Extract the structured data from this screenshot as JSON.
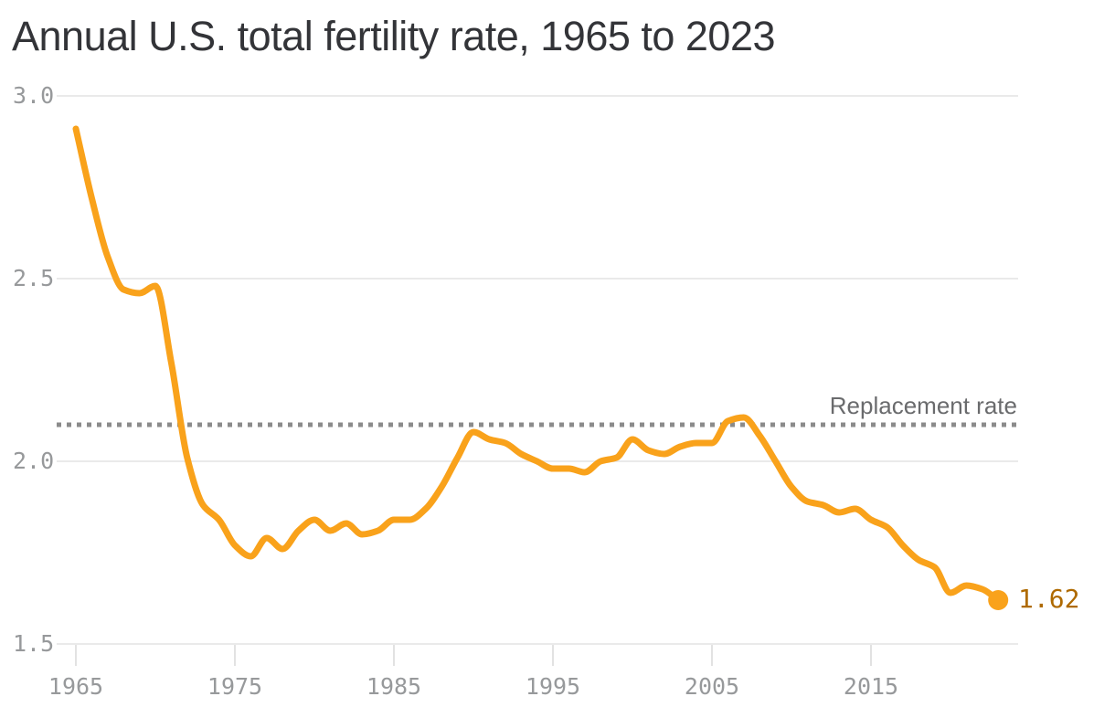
{
  "title": "Annual U.S. total fertility rate, 1965 to 2023",
  "colors": {
    "background": "#FFFFFF",
    "title": "#333438",
    "line": "#F9A21B",
    "end_dot": "#F9A21B",
    "end_value_label": "#AF6A00",
    "axis_label": "#97999B",
    "gridline": "#EAEAEA",
    "axis_tick": "#E2E2E2",
    "reference_line": "#8B8B8B",
    "reference_label": "#6A6B6D"
  },
  "chart_data": {
    "type": "line",
    "title": "Annual U.S. total fertility rate, 1965 to 2023",
    "xlabel": "",
    "ylabel": "",
    "xlim": [
      1965,
      2023
    ],
    "ylim": [
      1.5,
      3.0
    ],
    "grid": "horizontal",
    "legend": "none",
    "x": [
      1965,
      1966,
      1967,
      1968,
      1969,
      1970,
      1971,
      1972,
      1973,
      1974,
      1975,
      1976,
      1977,
      1978,
      1979,
      1980,
      1981,
      1982,
      1983,
      1984,
      1985,
      1986,
      1987,
      1988,
      1989,
      1990,
      1991,
      1992,
      1993,
      1994,
      1995,
      1996,
      1997,
      1998,
      1999,
      2000,
      2001,
      2002,
      2003,
      2004,
      2005,
      2006,
      2007,
      2008,
      2009,
      2010,
      2011,
      2012,
      2013,
      2014,
      2015,
      2016,
      2017,
      2018,
      2019,
      2020,
      2021,
      2022,
      2023
    ],
    "series": [
      {
        "name": "U.S. total fertility rate",
        "values": [
          2.91,
          2.72,
          2.56,
          2.47,
          2.46,
          2.48,
          2.27,
          2.01,
          1.88,
          1.84,
          1.77,
          1.74,
          1.79,
          1.76,
          1.81,
          1.84,
          1.81,
          1.83,
          1.8,
          1.81,
          1.84,
          1.84,
          1.87,
          1.93,
          2.01,
          2.08,
          2.06,
          2.05,
          2.02,
          2.0,
          1.98,
          1.98,
          1.97,
          2.0,
          2.01,
          2.06,
          2.03,
          2.02,
          2.04,
          2.05,
          2.05,
          2.11,
          2.12,
          2.07,
          2.0,
          1.93,
          1.89,
          1.88,
          1.86,
          1.87,
          1.84,
          1.82,
          1.77,
          1.73,
          1.71,
          1.64,
          1.66,
          1.65,
          1.62
        ]
      }
    ],
    "y_ticks": [
      {
        "value": 3.0,
        "label": "3.0"
      },
      {
        "value": 2.5,
        "label": "2.5"
      },
      {
        "value": 2.0,
        "label": "2.0"
      },
      {
        "value": 1.5,
        "label": "1.5"
      }
    ],
    "x_ticks": [
      {
        "value": 1965,
        "label": "1965"
      },
      {
        "value": 1975,
        "label": "1975"
      },
      {
        "value": 1985,
        "label": "1985"
      },
      {
        "value": 1995,
        "label": "1995"
      },
      {
        "value": 2005,
        "label": "2005"
      },
      {
        "value": 2015,
        "label": "2015"
      }
    ],
    "reference_line": {
      "value": 2.1,
      "label": "Replacement rate"
    },
    "end_point": {
      "x": 2023,
      "value": 1.62,
      "label": "1.62"
    }
  }
}
